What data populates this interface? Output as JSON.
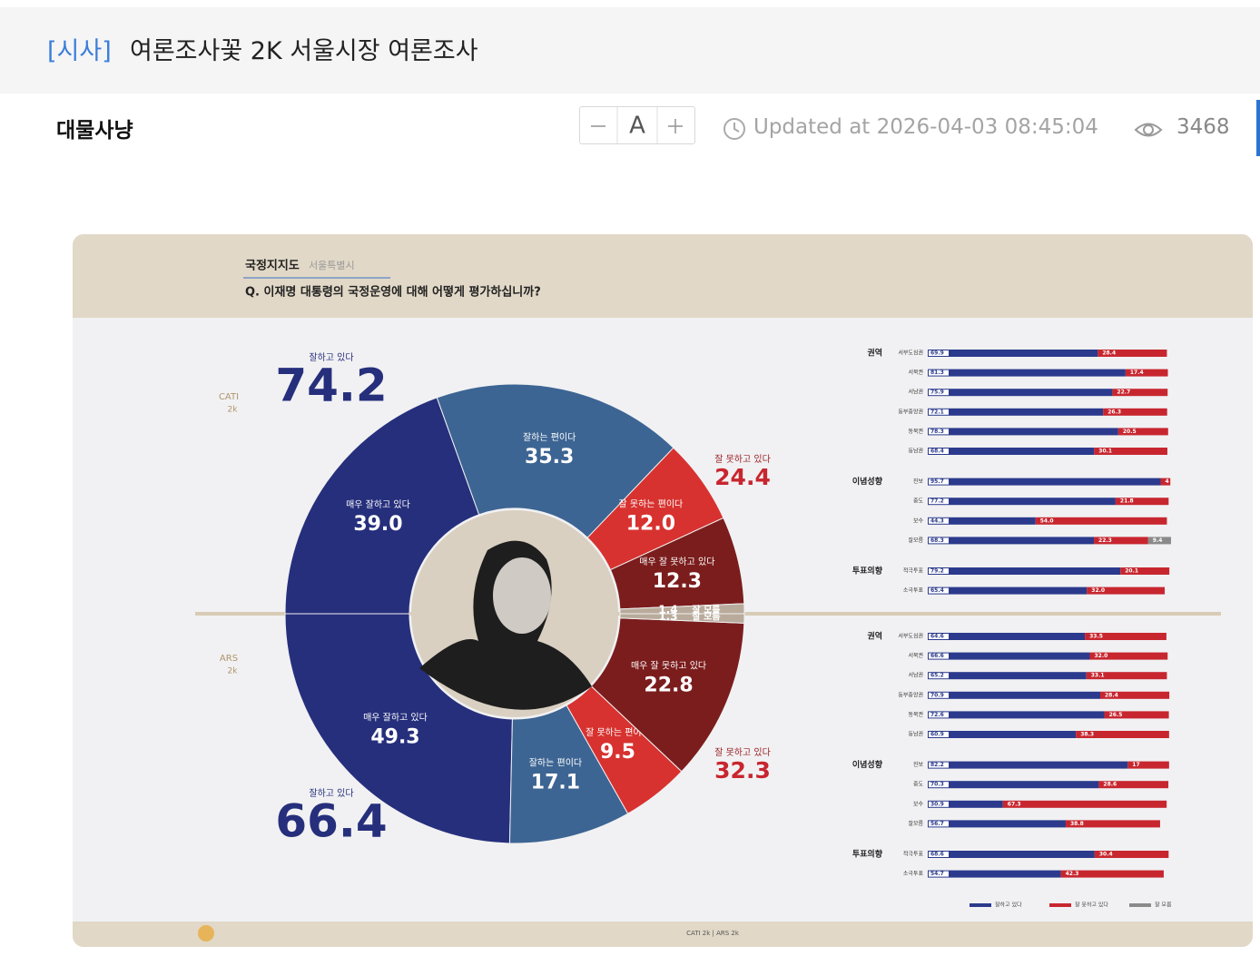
{
  "header": {
    "tag": "[시사]",
    "title": "여론조사꽃 2K 서울시장 여론조사"
  },
  "post": {
    "author": "대물사냥",
    "font_size_label": "A",
    "updated": "Updated at 2026-04-03 08:45:04",
    "views": "3468"
  },
  "infographic": {
    "title": "국정지지도",
    "subtitle": "서울특별시",
    "question": "Q. 이재명 대통령의 국정운영에 대해 어떻게 평가하십니까?",
    "footer": "CATI 2k | ARS 2k",
    "donut": {
      "type": "donut",
      "halves": [
        {
          "method": "CATI",
          "sample": "2k",
          "positive_label": "잘하고 있다",
          "positive": 74.2,
          "negative_label": "잘 못하고 있다",
          "negative": 24.4,
          "segments": [
            {
              "name": "매우 잘하고 있다",
              "color": "#262f7c",
              "value": 39.0,
              "value_label": "39.0"
            },
            {
              "name": "잘하는 편이다",
              "color": "#3d6593",
              "value": 35.3
            },
            {
              "name": "잘 못하는 편이다",
              "color": "#d7322f",
              "value": 12.0,
              "value_label": "12.0"
            },
            {
              "name": "매우 잘 못하고 있다",
              "color": "#7b1d1d",
              "value": 12.3
            },
            {
              "name": "잘 모름",
              "color": "#b9ab9b",
              "value": 1.4
            }
          ]
        },
        {
          "method": "ARS",
          "sample": "2k",
          "positive_label": "잘하고 있다",
          "positive": 66.4,
          "negative_label": "잘 못하고 있다",
          "negative": 32.3,
          "segments": [
            {
              "name": "매우 잘하고 있다",
              "color": "#262f7c",
              "value": 49.3
            },
            {
              "name": "잘하는 편이다",
              "color": "#3d6593",
              "value": 17.1
            },
            {
              "name": "잘 못하는 편이다",
              "color": "#d7322f",
              "value": 9.5
            },
            {
              "name": "매우 잘 못하고 있다",
              "color": "#7b1d1d",
              "value": 22.8
            },
            {
              "name": "잘 모름",
              "color": "#b9ab9b",
              "value": 1.3
            }
          ]
        }
      ]
    },
    "bars": {
      "type": "stacked-bar",
      "xlim": [
        0,
        100
      ],
      "series": [
        {
          "name": "잘하고 있다",
          "color": "#2b3a8c"
        },
        {
          "name": "잘 못하고 있다",
          "color": "#c8262f"
        },
        {
          "name": "잘 모름",
          "color": "#8a8a8a"
        }
      ],
      "panels": [
        {
          "groups": [
            {
              "name": "권역",
              "rows": [
                {
                  "name": "서부도심권",
                  "values": [
                    69.9,
                    28.4
                  ]
                },
                {
                  "name": "서북권",
                  "values": [
                    81.3,
                    17.4
                  ]
                },
                {
                  "name": "서남권",
                  "values": [
                    75.9,
                    22.7
                  ]
                },
                {
                  "name": "동부중앙권",
                  "values": [
                    72.1,
                    26.3
                  ]
                },
                {
                  "name": "동북권",
                  "values": [
                    78.3,
                    20.5
                  ]
                },
                {
                  "name": "동남권",
                  "values": [
                    68.4,
                    30.1
                  ]
                }
              ]
            },
            {
              "name": "이념성향",
              "rows": [
                {
                  "name": "진보",
                  "values": [
                    95.7,
                    4.0
                  ]
                },
                {
                  "name": "중도",
                  "values": [
                    77.2,
                    21.8
                  ]
                },
                {
                  "name": "보수",
                  "values": [
                    44.3,
                    54.0
                  ],
                  "value_labels": [
                    "44.3",
                    "54.0"
                  ]
                },
                {
                  "name": "잘모름",
                  "values": [
                    68.3,
                    22.3,
                    9.4
                  ]
                }
              ]
            },
            {
              "name": "투표의향",
              "rows": [
                {
                  "name": "적극투표",
                  "values": [
                    79.2,
                    20.1
                  ]
                },
                {
                  "name": "소극투표",
                  "values": [
                    65.4,
                    32.0
                  ],
                  "value_labels": [
                    "65.4",
                    "32.0"
                  ]
                }
              ]
            }
          ]
        },
        {
          "groups": [
            {
              "name": "권역",
              "rows": [
                {
                  "name": "서부도심권",
                  "values": [
                    64.6,
                    33.5
                  ]
                },
                {
                  "name": "서북권",
                  "values": [
                    66.6,
                    32.0
                  ],
                  "value_labels": [
                    "66.6",
                    "32.0"
                  ]
                },
                {
                  "name": "서남권",
                  "values": [
                    65.2,
                    33.1
                  ]
                },
                {
                  "name": "동부중앙권",
                  "values": [
                    70.9,
                    28.4
                  ]
                },
                {
                  "name": "동북권",
                  "values": [
                    72.6,
                    26.5
                  ]
                },
                {
                  "name": "동남권",
                  "values": [
                    60.9,
                    38.3
                  ]
                }
              ]
            },
            {
              "name": "이념성향",
              "rows": [
                {
                  "name": "진보",
                  "values": [
                    82.2,
                    17
                  ]
                },
                {
                  "name": "중도",
                  "values": [
                    70.3,
                    28.6
                  ]
                },
                {
                  "name": "보수",
                  "values": [
                    30.9,
                    67.3
                  ]
                },
                {
                  "name": "잘모름",
                  "values": [
                    56.7,
                    38.8
                  ]
                }
              ]
            },
            {
              "name": "투표의향",
              "rows": [
                {
                  "name": "적극투표",
                  "values": [
                    68.6,
                    30.4
                  ]
                },
                {
                  "name": "소극투표",
                  "values": [
                    54.7,
                    42.3
                  ]
                }
              ]
            }
          ]
        }
      ]
    }
  }
}
